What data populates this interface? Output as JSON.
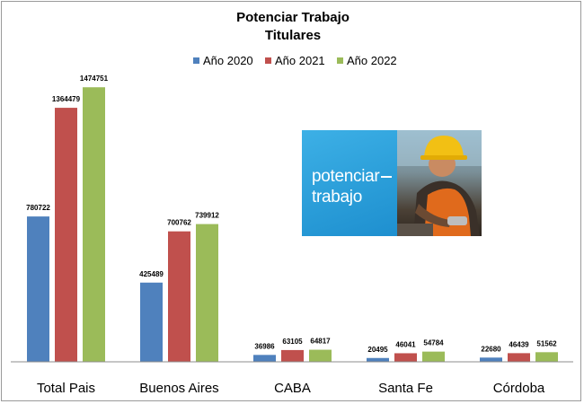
{
  "chart_data": {
    "type": "bar",
    "title": "Potenciar Trabajo",
    "subtitle": "Titulares",
    "categories": [
      "Total Pais",
      "Buenos Aires",
      "CABA",
      "Santa Fe",
      "Córdoba"
    ],
    "series": [
      {
        "name": "Año 2020",
        "color": "#4f81bd",
        "values": [
          780722,
          425489,
          36986,
          20495,
          22680
        ]
      },
      {
        "name": "Año 2021",
        "color": "#c0504d",
        "values": [
          1364479,
          700762,
          63105,
          46041,
          46439
        ]
      },
      {
        "name": "Año 2022",
        "color": "#9bbb59",
        "values": [
          1474751,
          739912,
          64817,
          54784,
          51562
        ]
      }
    ],
    "ylim": [
      0,
      1600000
    ],
    "grid": false,
    "legend_position": "top",
    "data_labels": true
  },
  "promo": {
    "line1": "potenciar",
    "line2": "trabajo",
    "icon": "hardhat-worker-photo"
  }
}
